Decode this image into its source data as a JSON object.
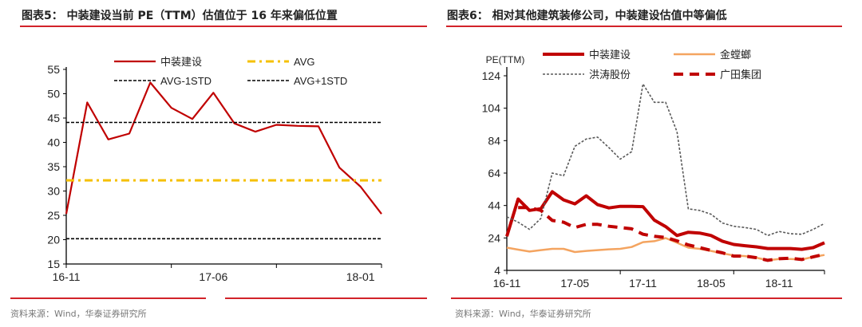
{
  "colors": {
    "accent_rule": "#d2232a",
    "zhongzhuang": "#c00000",
    "avg": "#f5c000",
    "std": "#000000",
    "jinluoma": "#f4a460",
    "hongtao": "#595959",
    "guangtian": "#c00000"
  },
  "chart_data": [
    {
      "type": "line",
      "title": "图表5：  中装建设当前 PE（TTM）估值位于 16 年来偏低位置",
      "source": "资料来源：Wind，华泰证券研究所",
      "xlabel": "",
      "ylabel": "",
      "ylim": [
        15,
        55
      ],
      "yticks": [
        "15",
        "20",
        "25",
        "30",
        "35",
        "40",
        "45",
        "50",
        "55"
      ],
      "x": [
        "16-11",
        "16-12",
        "17-01",
        "17-02",
        "17-03",
        "17-04",
        "17-05",
        "17-06",
        "17-07",
        "17-08",
        "17-09",
        "17-10",
        "17-11",
        "17-12",
        "18-01",
        "18-02"
      ],
      "xtick_labels": [
        "16-11",
        "17-06",
        "18-01"
      ],
      "legend": "top",
      "grid": false,
      "series": [
        {
          "name": "中装建设",
          "style": "solid",
          "values": [
            25.3,
            48.2,
            40.6,
            41.8,
            52.3,
            47.1,
            44.8,
            50.2,
            43.9,
            42.2,
            43.6,
            43.4,
            43.3,
            34.8,
            30.9,
            25.3
          ]
        },
        {
          "name": "AVG",
          "style": "dash-dot",
          "values": [
            32.2,
            32.2,
            32.2,
            32.2,
            32.2,
            32.2,
            32.2,
            32.2,
            32.2,
            32.2,
            32.2,
            32.2,
            32.2,
            32.2,
            32.2,
            32.2
          ]
        },
        {
          "name": "AVG-1STD",
          "style": "dashed",
          "values": [
            20.2,
            20.2,
            20.2,
            20.2,
            20.2,
            20.2,
            20.2,
            20.2,
            20.2,
            20.2,
            20.2,
            20.2,
            20.2,
            20.2,
            20.2,
            20.2
          ]
        },
        {
          "name": "AVG+1STD",
          "style": "dashed",
          "values": [
            44.1,
            44.1,
            44.1,
            44.1,
            44.1,
            44.1,
            44.1,
            44.1,
            44.1,
            44.1,
            44.1,
            44.1,
            44.1,
            44.1,
            44.1,
            44.1
          ]
        }
      ]
    },
    {
      "type": "line",
      "title": "图表6：  相对其他建筑装修公司，中装建设估值中等偏低",
      "source": "资料来源：Wind，华泰证券研究所",
      "xlabel": "",
      "ylabel": "PE(TTM)",
      "ylim": [
        4,
        124
      ],
      "yticks": [
        "4",
        "24",
        "44",
        "64",
        "84",
        "104",
        "124"
      ],
      "x": [
        "16-11",
        "16-12",
        "17-01",
        "17-02",
        "17-03",
        "17-04",
        "17-05",
        "17-06",
        "17-07",
        "17-08",
        "17-09",
        "17-10",
        "17-11",
        "17-12",
        "18-01",
        "18-02",
        "18-03",
        "18-04",
        "18-05",
        "18-06",
        "18-07",
        "18-08",
        "18-09",
        "18-10",
        "18-11",
        "18-12",
        "19-01",
        "19-02",
        "19-03"
      ],
      "xtick_labels": [
        "16-11",
        "17-05",
        "17-11",
        "18-05",
        "18-11"
      ],
      "legend": "top",
      "grid": false,
      "series": [
        {
          "name": "中装建设",
          "style": "solid-thick",
          "values": [
            25,
            48,
            41,
            42,
            52.5,
            47.5,
            45,
            50,
            44.5,
            42.5,
            43.5,
            43.5,
            43.3,
            35,
            31,
            25.5,
            27.5,
            27,
            25.5,
            22,
            20,
            19.2,
            18.5,
            17.5,
            17.5,
            17.5,
            17,
            18,
            21
          ]
        },
        {
          "name": "金螳螂",
          "style": "solid",
          "values": [
            18,
            16.8,
            15.6,
            16.5,
            17.3,
            17.3,
            15.3,
            16,
            16.5,
            17,
            17.3,
            18.4,
            21.4,
            22,
            23.9,
            21,
            18,
            17.3,
            16,
            14.5,
            13.2,
            12.8,
            11.8,
            10.2,
            11,
            11,
            10.7,
            12.3,
            13.5
          ]
        },
        {
          "name": "洪涛股份",
          "style": "dotted",
          "values": [
            37,
            33.7,
            29.3,
            36,
            64,
            62.4,
            80.5,
            85,
            86.2,
            79.7,
            72.6,
            77.2,
            119,
            107.6,
            107.6,
            89.5,
            41.9,
            41,
            38.6,
            33.2,
            31.2,
            30.4,
            29.3,
            25.5,
            28,
            26.6,
            26.3,
            29.3,
            32.9
          ]
        },
        {
          "name": "广田集团",
          "style": "dashed-thick",
          "values": [
            null,
            42.7,
            42.7,
            41,
            34.8,
            33.7,
            30.4,
            32.4,
            32.4,
            31.2,
            30.4,
            29.6,
            26.3,
            25,
            24.3,
            22.2,
            19.7,
            18,
            16.3,
            14.8,
            12.8,
            12.8,
            11.8,
            10.2,
            11.2,
            11.5,
            10.7,
            12.3,
            14
          ]
        }
      ]
    }
  ]
}
